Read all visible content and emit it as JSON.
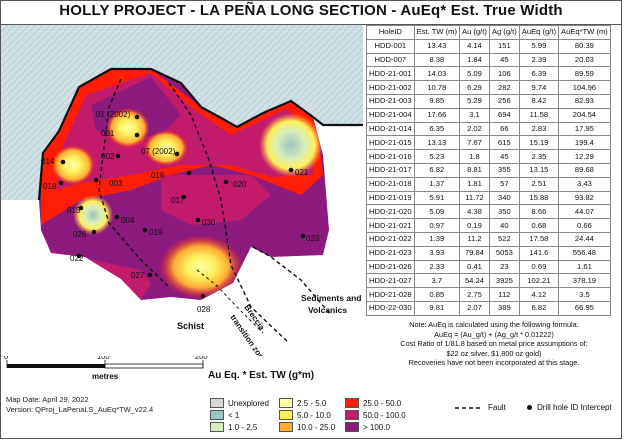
{
  "title": "HOLLY PROJECT  - LA PEÑA LONG SECTION - AuEq* Est. True Width",
  "map": {
    "labels": {
      "schist": "Schist",
      "sediments_line1": "Sediments and",
      "sediments_line2": "Volcanics",
      "breccia_line1": "Breccia",
      "breccia_line2": "transition zone"
    },
    "holes": [
      {
        "label": "01 (2002)"
      },
      {
        "label": "001"
      },
      {
        "label": "07 (2002)"
      },
      {
        "label": "014"
      },
      {
        "label": "002"
      },
      {
        "label": "016"
      },
      {
        "label": "018"
      },
      {
        "label": "003"
      },
      {
        "label": "020"
      },
      {
        "label": "021"
      },
      {
        "label": "017"
      },
      {
        "label": "015"
      },
      {
        "label": "004"
      },
      {
        "label": "030"
      },
      {
        "label": "026"
      },
      {
        "label": "019"
      },
      {
        "label": "023"
      },
      {
        "label": "022"
      },
      {
        "label": "027"
      },
      {
        "label": "028"
      }
    ]
  },
  "table": {
    "headers": [
      "HoleID",
      "Est. TW (m)",
      "Au (g/t)",
      "Ag (g/t)",
      "AuEq (g/t)",
      "AuEq*TW (m)"
    ],
    "rows": [
      [
        "HDD-001",
        "13.43",
        "4.14",
        "151",
        "5.99",
        "80.39"
      ],
      [
        "HDD-007",
        "8.38",
        "1.84",
        "45",
        "2.39",
        "20.03"
      ],
      [
        "HDD-21-001",
        "14.03",
        "5.09",
        "106",
        "6.39",
        "89.59"
      ],
      [
        "HDD-21-002",
        "10.78",
        "6.29",
        "282",
        "9.74",
        "104.96"
      ],
      [
        "HDD-21-003",
        "9.85",
        "5.29",
        "256",
        "8.42",
        "82.93"
      ],
      [
        "HDD-21-004",
        "17.66",
        "3.1",
        "694",
        "11.58",
        "204.54"
      ],
      [
        "HDD-21-014",
        "6.35",
        "2.02",
        "66",
        "2.83",
        "17.95"
      ],
      [
        "HDD-21-015",
        "13.13",
        "7.67",
        "615",
        "15.19",
        "199.4"
      ],
      [
        "HDD-21-016",
        "5.23",
        "1.8",
        "45",
        "2.35",
        "12.29"
      ],
      [
        "HDD-21-017",
        "6.82",
        "8.81",
        "355",
        "13.15",
        "89.68"
      ],
      [
        "HDD-21-018",
        "1.37",
        "1.81",
        "57",
        "2.51",
        "3.43"
      ],
      [
        "HDD-21-019",
        "5.91",
        "11.72",
        "340",
        "15.88",
        "93.82"
      ],
      [
        "HDD-21-020",
        "5.09",
        "4.38",
        "350",
        "8.66",
        "44.07"
      ],
      [
        "HDD-21-021",
        "0.97",
        "0.19",
        "40",
        "0.68",
        "0.66"
      ],
      [
        "HDD-21-022",
        "1.39",
        "11.2",
        "522",
        "17.58",
        "24.44"
      ],
      [
        "HDD-21-023",
        "3.93",
        "79.84",
        "5053",
        "141.6",
        "556.48"
      ],
      [
        "HDD-21-026",
        "2.33",
        "0.41",
        "23",
        "0.69",
        "1.61"
      ],
      [
        "HDD-21-027",
        "3.7",
        "54.24",
        "3925",
        "102.21",
        "378.19"
      ],
      [
        "HDD-21-028",
        "0.85",
        "2.75",
        "112",
        "4.12",
        "3.5"
      ],
      [
        "HDD-22-030",
        "9.81",
        "2.07",
        "389",
        "6.82",
        "66.95"
      ]
    ]
  },
  "notes": {
    "line1": "Note: AuEq is calculated using the following formula:",
    "line2": "AuEq = (Au_g/t) + (Ag_g/t * 0.01222)",
    "line3": "Cost Ratio of 1/81.8 based on metal price assumptions of:",
    "line4": "$22 oz silver, $1,800 oz gold)",
    "line5": "Recoveries have not been incorporated at this stage."
  },
  "scale": {
    "ticks": [
      "0",
      "100",
      "200"
    ],
    "unit": "metres"
  },
  "map_date": "Map Date: April 29, 2022",
  "version": "Version: QProj_LaPenaLS_AuEq*TW_v22.4",
  "legend": {
    "title": "Au Eq. *  Est. TW (g*m)",
    "items": [
      {
        "label": "Unexplored",
        "color": "#d6d6d6"
      },
      {
        "label": "< 1",
        "color": "#9cc4c0"
      },
      {
        "label": "1.0 - 2.5",
        "color": "#d9efb9"
      },
      {
        "label": "2.5 - 5.0",
        "color": "#ffffa8"
      },
      {
        "label": "5.0 - 10.0",
        "color": "#ffee5a"
      },
      {
        "label": "10.0 - 25.0",
        "color": "#ffad33"
      },
      {
        "label": "25.0 - 50.0",
        "color": "#ff1e05"
      },
      {
        "label": "50.0 - 100.0",
        "color": "#c31b6b"
      },
      {
        "label": "> 100.0",
        "color": "#8d1a7e"
      }
    ],
    "fault": "Fault",
    "drill_hole": "Drill hole ID Intercept"
  },
  "colors": {
    "sky": "#cfe0e6",
    "hatch": "#a8bfc6",
    "schist": "#ffffff"
  }
}
